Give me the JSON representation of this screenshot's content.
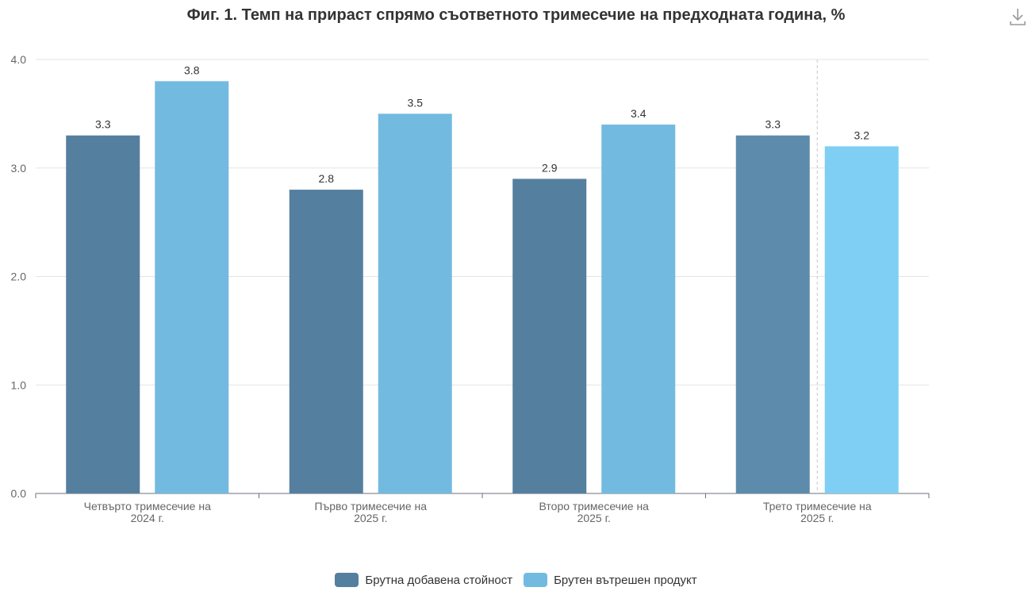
{
  "chart_data": {
    "type": "bar",
    "title": "Фиг. 1. Темп на прираст спрямо съответното тримесечие на предходната година, %",
    "categories": [
      [
        "Четвърто тримесечие на",
        "2024 г."
      ],
      [
        "Първо тримесечие на",
        "2025 г."
      ],
      [
        "Второ тримесечие на",
        "2025 г."
      ],
      [
        "Трето тримесечие на",
        "2025 г."
      ]
    ],
    "series": [
      {
        "name": "Брутна добавена стойност",
        "values": [
          3.3,
          2.8,
          2.9,
          3.3
        ]
      },
      {
        "name": "Брутен вътрешен продукт",
        "values": [
          3.8,
          3.5,
          3.4,
          3.2
        ]
      }
    ],
    "ylim": [
      0,
      4
    ],
    "yticks": [
      "0.0",
      "1.0",
      "2.0",
      "3.0",
      "4.0"
    ],
    "grid": true,
    "legend_position": "bottom-center",
    "colors": {
      "series1": "#557f9f",
      "series2": "#73bae0",
      "series1_highlight": "#5d8bac",
      "series2_highlight": "#7fcff4"
    }
  },
  "icons": {
    "download": "download-icon"
  }
}
